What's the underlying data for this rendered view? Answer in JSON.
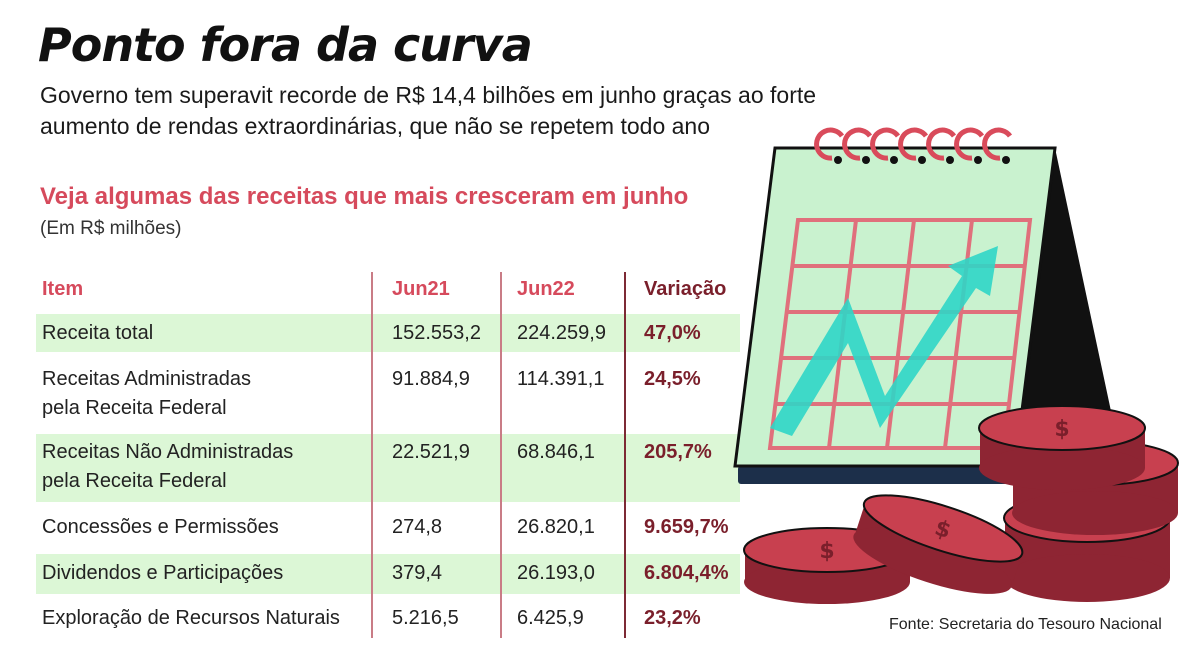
{
  "header": {
    "title": "Ponto fora da curva",
    "subtitle_line1": "Governo tem superavit recorde de R$ 14,4 bilhões em junho graças ao forte",
    "subtitle_line2": "aumento de rendas extraordinárias,  que não se repetem todo ano"
  },
  "section": {
    "title": "Veja algumas das receitas que mais cresceram em junho",
    "note": "(Em R$ milhões)"
  },
  "table": {
    "headers": {
      "item": "Item",
      "jun21": "Jun21",
      "jun22": "Jun22",
      "variacao": "Variação"
    },
    "rows": [
      {
        "item_line1": "Receita total",
        "item_line2": "",
        "jun21": "152.553,2",
        "jun22": "224.259,9",
        "variacao": "47,0%"
      },
      {
        "item_line1": "Receitas Administradas",
        "item_line2": "pela Receita Federal",
        "jun21": "91.884,9",
        "jun22": "114.391,1",
        "variacao": "24,5%"
      },
      {
        "item_line1": "Receitas Não Administradas",
        "item_line2": "pela Receita Federal",
        "jun21": "22.521,9",
        "jun22": "68.846,1",
        "variacao": "205,7%"
      },
      {
        "item_line1": "Concessões e Permissões",
        "item_line2": "",
        "jun21": "274,8",
        "jun22": "26.820,1",
        "variacao": "9.659,7%"
      },
      {
        "item_line1": "Dividendos e Participações",
        "item_line2": "",
        "jun21": "379,4",
        "jun22": "26.193,0",
        "variacao": "6.804,4%"
      },
      {
        "item_line1": "Exploração de Recursos Naturais",
        "item_line2": "",
        "jun21": "5.216,5",
        "jun22": "6.425,9",
        "variacao": "23,2%"
      }
    ]
  },
  "source": "Fonte: Secretaria do Tesouro Nacional",
  "illustration": {
    "calendar_icon": "calendar-growth-chart-icon",
    "coins_icon": "coin-stack-icon",
    "colors": {
      "calendar_bg": "#c9f2cf",
      "grid": "#e0707c",
      "arrow": "#2fd6c6",
      "coin": "#c8404f",
      "coin_dark": "#8e2533",
      "stand": "#111111"
    }
  }
}
